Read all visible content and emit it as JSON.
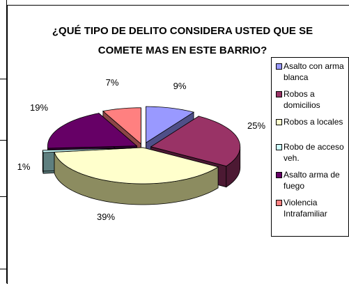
{
  "chart_data": {
    "type": "pie",
    "title": "¿QUÉ TIPO DE DELITO CONSIDERA USTED QUE SE COMETE MAS EN ESTE BARRIO?",
    "title_lines": [
      "¿QUÉ TIPO DE DELITO CONSIDERA USTED QUE SE",
      "COMETE MAS EN ESTE BARRIO?"
    ],
    "style": "3d-exploded",
    "legend_position": "right",
    "slices": [
      {
        "label": "Asalto con arma blanca",
        "legend_lines": [
          "Asalto con arma",
          "blanca"
        ],
        "value": 9,
        "value_label": "9%",
        "color": "#9999ff",
        "side_color": "#4f4f88"
      },
      {
        "label": "Robos a domicilios",
        "legend_lines": [
          "Robos a",
          "domicilios"
        ],
        "value": 25,
        "value_label": "25%",
        "color": "#993366",
        "side_color": "#4c1933"
      },
      {
        "label": "Robos a locales",
        "legend_lines": [
          "Robos a locales"
        ],
        "value": 39,
        "value_label": "39%",
        "color": "#ffffcc",
        "side_color": "#8c8c60"
      },
      {
        "label": "Robo de acceso veh.",
        "legend_lines": [
          "Robo de acceso",
          "veh."
        ],
        "value": 1,
        "value_label": "1%",
        "color": "#ccffff",
        "side_color": "#5e7f7f"
      },
      {
        "label": "Asalto arma de fuego",
        "legend_lines": [
          "Asalto arma de",
          "fuego"
        ],
        "value": 19,
        "value_label": "19%",
        "color": "#660066",
        "side_color": "#330033"
      },
      {
        "label": "Violencia Intrafamiliar",
        "legend_lines": [
          "Violencia",
          "Intrafamiliar"
        ],
        "value": 7,
        "value_label": "7%",
        "color": "#ff8080",
        "side_color": "#8c4646"
      }
    ]
  }
}
